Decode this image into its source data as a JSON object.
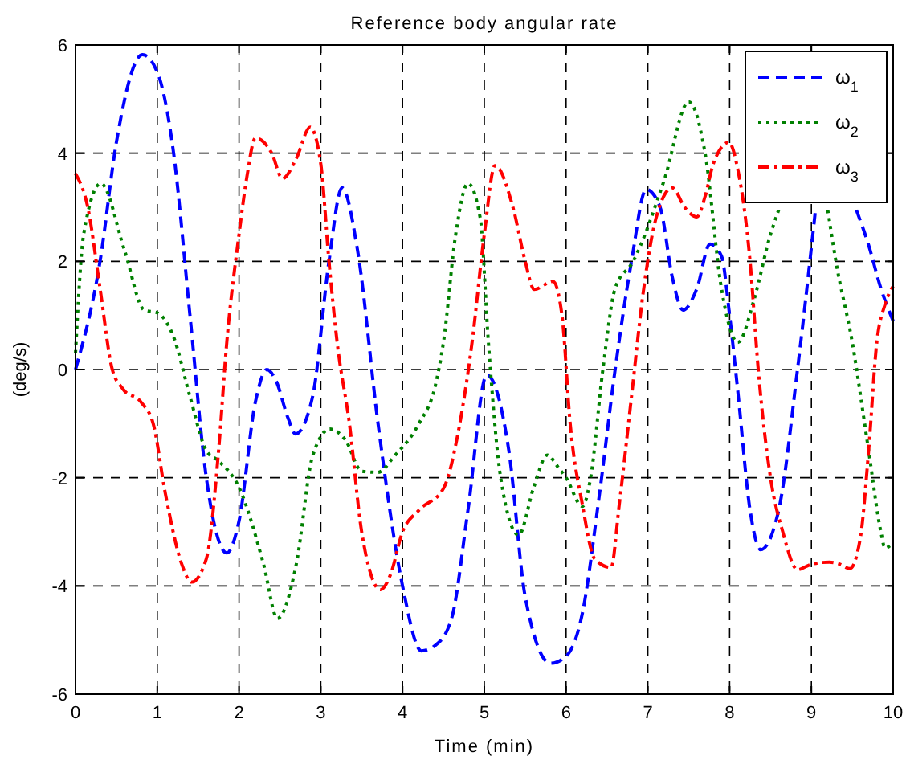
{
  "chart_data": {
    "type": "line",
    "title": "Reference body angular rate",
    "xlabel": "Time (min)",
    "ylabel": "(deg/s)",
    "xlim": [
      0,
      10
    ],
    "xticks": [
      0,
      1,
      2,
      3,
      4,
      5,
      6,
      7,
      8,
      9,
      10
    ],
    "ylim": [
      -6,
      6
    ],
    "yticks": [
      -6,
      -4,
      -2,
      0,
      2,
      4,
      6
    ],
    "grid": true,
    "legend": "top right",
    "series": [
      {
        "name": "ω$_{1}$",
        "color": "#0000ff",
        "line_style": "dashed",
        "x": [
          0,
          0.3,
          0.5,
          0.82,
          1.0,
          1.2,
          1.4,
          1.6,
          1.85,
          2.0,
          2.2,
          2.34,
          2.45,
          2.6,
          2.69,
          2.9,
          3.1,
          3.26,
          3.45,
          3.7,
          4.0,
          4.23,
          4.4,
          4.6,
          4.8,
          5.03,
          5.3,
          5.5,
          5.81,
          6.0,
          6.2,
          6.4,
          6.6,
          6.8,
          6.98,
          7.15,
          7.3,
          7.43,
          7.6,
          7.76,
          7.9,
          8.0,
          8.1,
          8.25,
          8.38,
          8.6,
          8.83,
          9.05,
          9.3,
          9.55,
          9.7,
          9.85,
          10
        ],
        "values": [
          0,
          2,
          4.2,
          5.82,
          5.5,
          4,
          1,
          -2,
          -3.39,
          -2.8,
          -0.6,
          0,
          -0.2,
          -0.9,
          -1.19,
          -0.5,
          2.0,
          3.36,
          2.2,
          -1,
          -4,
          -5.2,
          -5.1,
          -4.6,
          -2.6,
          -0.1,
          -1.5,
          -4.2,
          -5.43,
          -5.3,
          -4.5,
          -2.4,
          0,
          2,
          3.33,
          3,
          1.7,
          1.1,
          1.5,
          2.32,
          2.1,
          1,
          -0.4,
          -2.6,
          -3.33,
          -2.6,
          0,
          2.95,
          null,
          2.95,
          2.3,
          1.5,
          0.9
        ]
      },
      {
        "name": "ω$_{2}$",
        "color": "#008000",
        "line_style": "dotted",
        "x": [
          0,
          0.1,
          0.31,
          0.6,
          0.84,
          1.0,
          1.2,
          1.4,
          1.6,
          1.75,
          2.0,
          2.3,
          2.47,
          2.7,
          2.9,
          3.11,
          3.3,
          3.5,
          3.7,
          3.9,
          4.2,
          4.4,
          4.5,
          4.65,
          4.8,
          4.95,
          5.05,
          5.2,
          5.42,
          5.6,
          5.77,
          5.9,
          6.0,
          6.2,
          6.3,
          6.45,
          6.6,
          6.82,
          7.2,
          7.5,
          7.7,
          7.9,
          8.1,
          8.3,
          8.5,
          8.6,
          8.9,
          9.2,
          9.3,
          9.5,
          9.7,
          9.85,
          9.9,
          10
        ],
        "values": [
          0.3,
          2.5,
          3.44,
          2.2,
          1.1,
          1.05,
          0.6,
          -0.5,
          -1.5,
          -1.69,
          -2.18,
          -3.6,
          -4.6,
          -3.6,
          -1.6,
          -1.1,
          -1.3,
          -1.88,
          -1.9,
          -1.6,
          -1.0,
          -0.3,
          0.5,
          2.5,
          3.44,
          2.8,
          0.5,
          -2.0,
          -3.06,
          -2.2,
          -1.58,
          -1.8,
          -2.0,
          -2.53,
          -2.0,
          0,
          1.5,
          2.0,
          3.5,
          4.95,
          4,
          1.5,
          0.5,
          1.3,
          2.5,
          2.95,
          null,
          2.95,
          2.0,
          0.5,
          -1.5,
          -3.0,
          -3.3,
          -3.2
        ]
      },
      {
        "name": "ω$_{3}$",
        "color": "#ff0000",
        "line_style": "dashdot",
        "x": [
          0,
          0.15,
          0.3,
          0.45,
          0.58,
          0.8,
          0.95,
          1.1,
          1.3,
          1.42,
          1.6,
          1.75,
          1.85,
          2.0,
          2.1,
          2.2,
          2.4,
          2.53,
          2.7,
          2.87,
          3.0,
          3.1,
          3.2,
          3.35,
          3.5,
          3.73,
          3.85,
          4.0,
          4.2,
          4.5,
          4.7,
          4.85,
          5.0,
          5.13,
          5.35,
          5.5,
          5.61,
          5.84,
          5.95,
          6.05,
          6.2,
          6.35,
          6.55,
          6.65,
          6.8,
          6.95,
          7.1,
          7.3,
          7.45,
          7.6,
          7.7,
          7.8,
          7.99,
          8.1,
          8.25,
          8.35,
          8.5,
          8.65,
          8.83,
          9.0,
          9.22,
          9.35,
          9.47,
          9.6,
          9.7,
          9.8,
          9.9,
          10
        ],
        "values": [
          3.62,
          3.0,
          1.5,
          0,
          -0.36,
          -0.6,
          -1.0,
          -2.3,
          -3.6,
          -3.93,
          -3.5,
          -1.5,
          0.5,
          2.5,
          3.6,
          4.28,
          4.0,
          3.53,
          3.9,
          4.48,
          3.8,
          2.0,
          0.5,
          -1.0,
          -3.0,
          -4.07,
          -3.8,
          -3.0,
          -2.6,
          -2.2,
          -1.0,
          0.5,
          2.5,
          3.77,
          3.0,
          2.0,
          1.48,
          1.63,
          1.0,
          -1.0,
          -2.5,
          -3.5,
          -3.66,
          -2.5,
          -0.5,
          1.5,
          2.8,
          3.36,
          3.0,
          2.82,
          3.2,
          3.8,
          4.2,
          3.7,
          2.0,
          0,
          -2.0,
          -3.0,
          -3.7,
          -3.6,
          -3.56,
          -3.6,
          -3.68,
          -3.1,
          -1.5,
          0.5,
          1.2,
          1.54
        ]
      }
    ]
  }
}
